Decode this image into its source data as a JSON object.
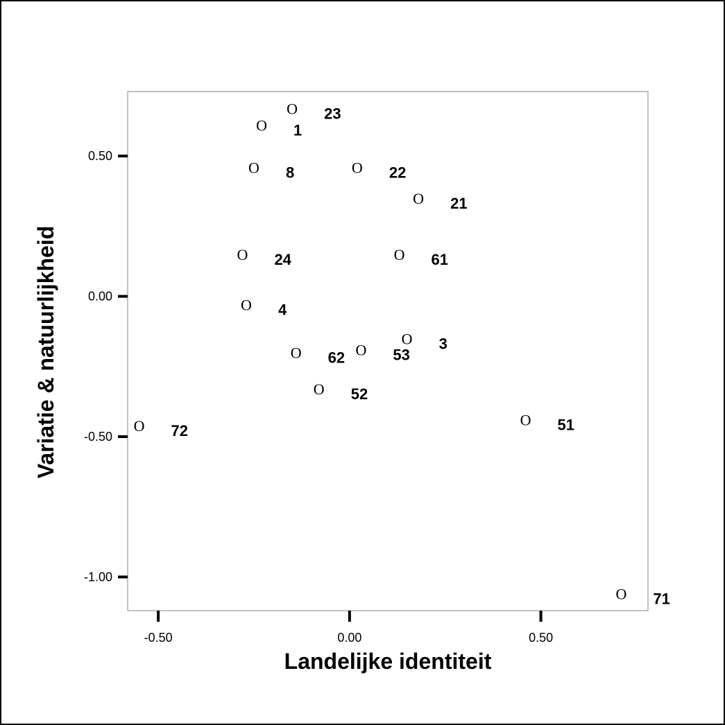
{
  "chart_data": {
    "type": "scatter",
    "title": "",
    "xlabel": "Landelijke identiteit",
    "ylabel": "Variatie & natuurlijkheid",
    "xlim": [
      -0.58,
      0.78
    ],
    "ylim": [
      -1.12,
      0.73
    ],
    "xticks": [
      -0.5,
      0.0,
      0.5
    ],
    "xtick_labels": [
      "-0.50",
      "0.00",
      "0.50"
    ],
    "yticks": [
      0.5,
      0.0,
      -0.5,
      -1.0
    ],
    "ytick_labels": [
      "0.50",
      "0.00",
      "-0.50",
      "-1.00"
    ],
    "grid": false,
    "marker": "O",
    "points": [
      {
        "label": "23",
        "x": -0.15,
        "y": 0.67
      },
      {
        "label": "1",
        "x": -0.23,
        "y": 0.61
      },
      {
        "label": "8",
        "x": -0.25,
        "y": 0.46
      },
      {
        "label": "22",
        "x": 0.02,
        "y": 0.46
      },
      {
        "label": "21",
        "x": 0.18,
        "y": 0.35
      },
      {
        "label": "24",
        "x": -0.28,
        "y": 0.15
      },
      {
        "label": "61",
        "x": 0.13,
        "y": 0.15
      },
      {
        "label": "4",
        "x": -0.27,
        "y": -0.03
      },
      {
        "label": "3",
        "x": 0.15,
        "y": -0.15
      },
      {
        "label": "62",
        "x": -0.14,
        "y": -0.2
      },
      {
        "label": "53",
        "x": 0.03,
        "y": -0.19
      },
      {
        "label": "52",
        "x": -0.08,
        "y": -0.33
      },
      {
        "label": "72",
        "x": -0.55,
        "y": -0.46
      },
      {
        "label": "51",
        "x": 0.46,
        "y": -0.44
      },
      {
        "label": "71",
        "x": 0.71,
        "y": -1.06
      }
    ]
  }
}
